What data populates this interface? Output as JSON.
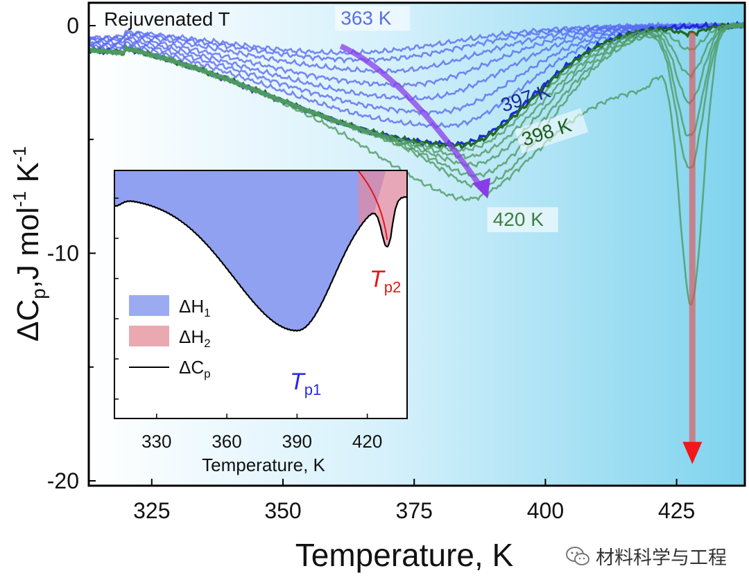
{
  "chart_data": {
    "type": "line",
    "xlabel": "Temperature, K",
    "ylabel_main": "ΔC",
    "ylabel_sub": "p",
    "ylabel_rest": ",J mol",
    "ylabel_sup1": "-1",
    "ylabel_k": " K",
    "ylabel_sup2": "-1",
    "xlim": [
      313,
      438
    ],
    "ylim": [
      -20,
      0.6
    ],
    "x_ticks": [
      325,
      350,
      375,
      400,
      425
    ],
    "y_ticks": [
      0,
      -10,
      -20
    ],
    "x_tick_labels": [
      "325",
      "350",
      "375",
      "400",
      "425"
    ],
    "y_tick_labels": [
      "0",
      "-10",
      "-20"
    ],
    "annotation_top_left": "Rejuvenated T",
    "series_labels": [
      {
        "text": "363 K",
        "x": 361,
        "y": 0.05,
        "color": "#5b6ee8"
      },
      {
        "text": "397 K",
        "x": 392,
        "y": -3.8,
        "color": "#1a2a9a"
      },
      {
        "text": "398 K",
        "x": 396,
        "y": -5.3,
        "color": "#1e5a1e"
      },
      {
        "text": "420 K",
        "x": 390,
        "y": -8.8,
        "color": "#3f7d3f"
      }
    ],
    "series": [
      {
        "name": "363 K",
        "group": "blue",
        "shallow": true,
        "depth": 1.2,
        "tmin": 362
      },
      {
        "name": "",
        "group": "blue",
        "shallow": true,
        "depth": 1.5,
        "tmin": 366
      },
      {
        "name": "",
        "group": "blue",
        "shallow": true,
        "depth": 2.0,
        "tmin": 370
      },
      {
        "name": "",
        "group": "blue",
        "shallow": true,
        "depth": 2.6,
        "tmin": 373
      },
      {
        "name": "",
        "group": "blue",
        "shallow": true,
        "depth": 3.2,
        "tmin": 376
      },
      {
        "name": "",
        "group": "blue",
        "shallow": true,
        "depth": 3.8,
        "tmin": 379
      },
      {
        "name": "",
        "group": "blue",
        "shallow": true,
        "depth": 4.4,
        "tmin": 381
      },
      {
        "name": "397 K",
        "group": "blue-dark",
        "shallow": false,
        "depth": 5.2,
        "tmin": 383
      },
      {
        "name": "398 K",
        "group": "green-dark",
        "peak_depth": 0.3,
        "peak_x": 427.5
      },
      {
        "name": "",
        "group": "green",
        "peak_depth": 1.0,
        "peak_x": 427.5
      },
      {
        "name": "",
        "group": "green",
        "peak_depth": 2.1,
        "peak_x": 427.5
      },
      {
        "name": "",
        "group": "green",
        "peak_depth": 3.3,
        "peak_x": 427.5
      },
      {
        "name": "",
        "group": "green",
        "peak_depth": 4.8,
        "peak_x": 427.5
      },
      {
        "name": "",
        "group": "green",
        "peak_depth": 6.2,
        "peak_x": 427.5
      },
      {
        "name": "420 K",
        "group": "green",
        "peak_depth": 12.0,
        "peak_x": 427.8,
        "plateau": 7.8
      }
    ],
    "purple_arrow": {
      "from": [
        361,
        -0.9
      ],
      "to": [
        389,
        -7.6
      ]
    },
    "red_arrow": {
      "x": 428,
      "from": -0.3,
      "to": -19.2
    },
    "inset": {
      "xlim": [
        312,
        437
      ],
      "x_ticks": [
        330,
        360,
        390,
        420
      ],
      "x_tick_labels": [
        "330",
        "360",
        "390",
        "420"
      ],
      "xlabel": "Temperature, K",
      "tp1": "T",
      "tp1_sub": "p1",
      "tp2": "T",
      "tp2_sub": "p2",
      "legend": [
        {
          "label": "ΔH",
          "sub": "1",
          "swatch": "#8a9cf0"
        },
        {
          "label": "ΔH",
          "sub": "2",
          "swatch": "#e8a0a8"
        },
        {
          "label": "ΔC",
          "sub": "p",
          "swatch": "#000000"
        }
      ]
    }
  },
  "watermark": {
    "text": "材料科学与工程",
    "icon": "wechat-icon"
  }
}
